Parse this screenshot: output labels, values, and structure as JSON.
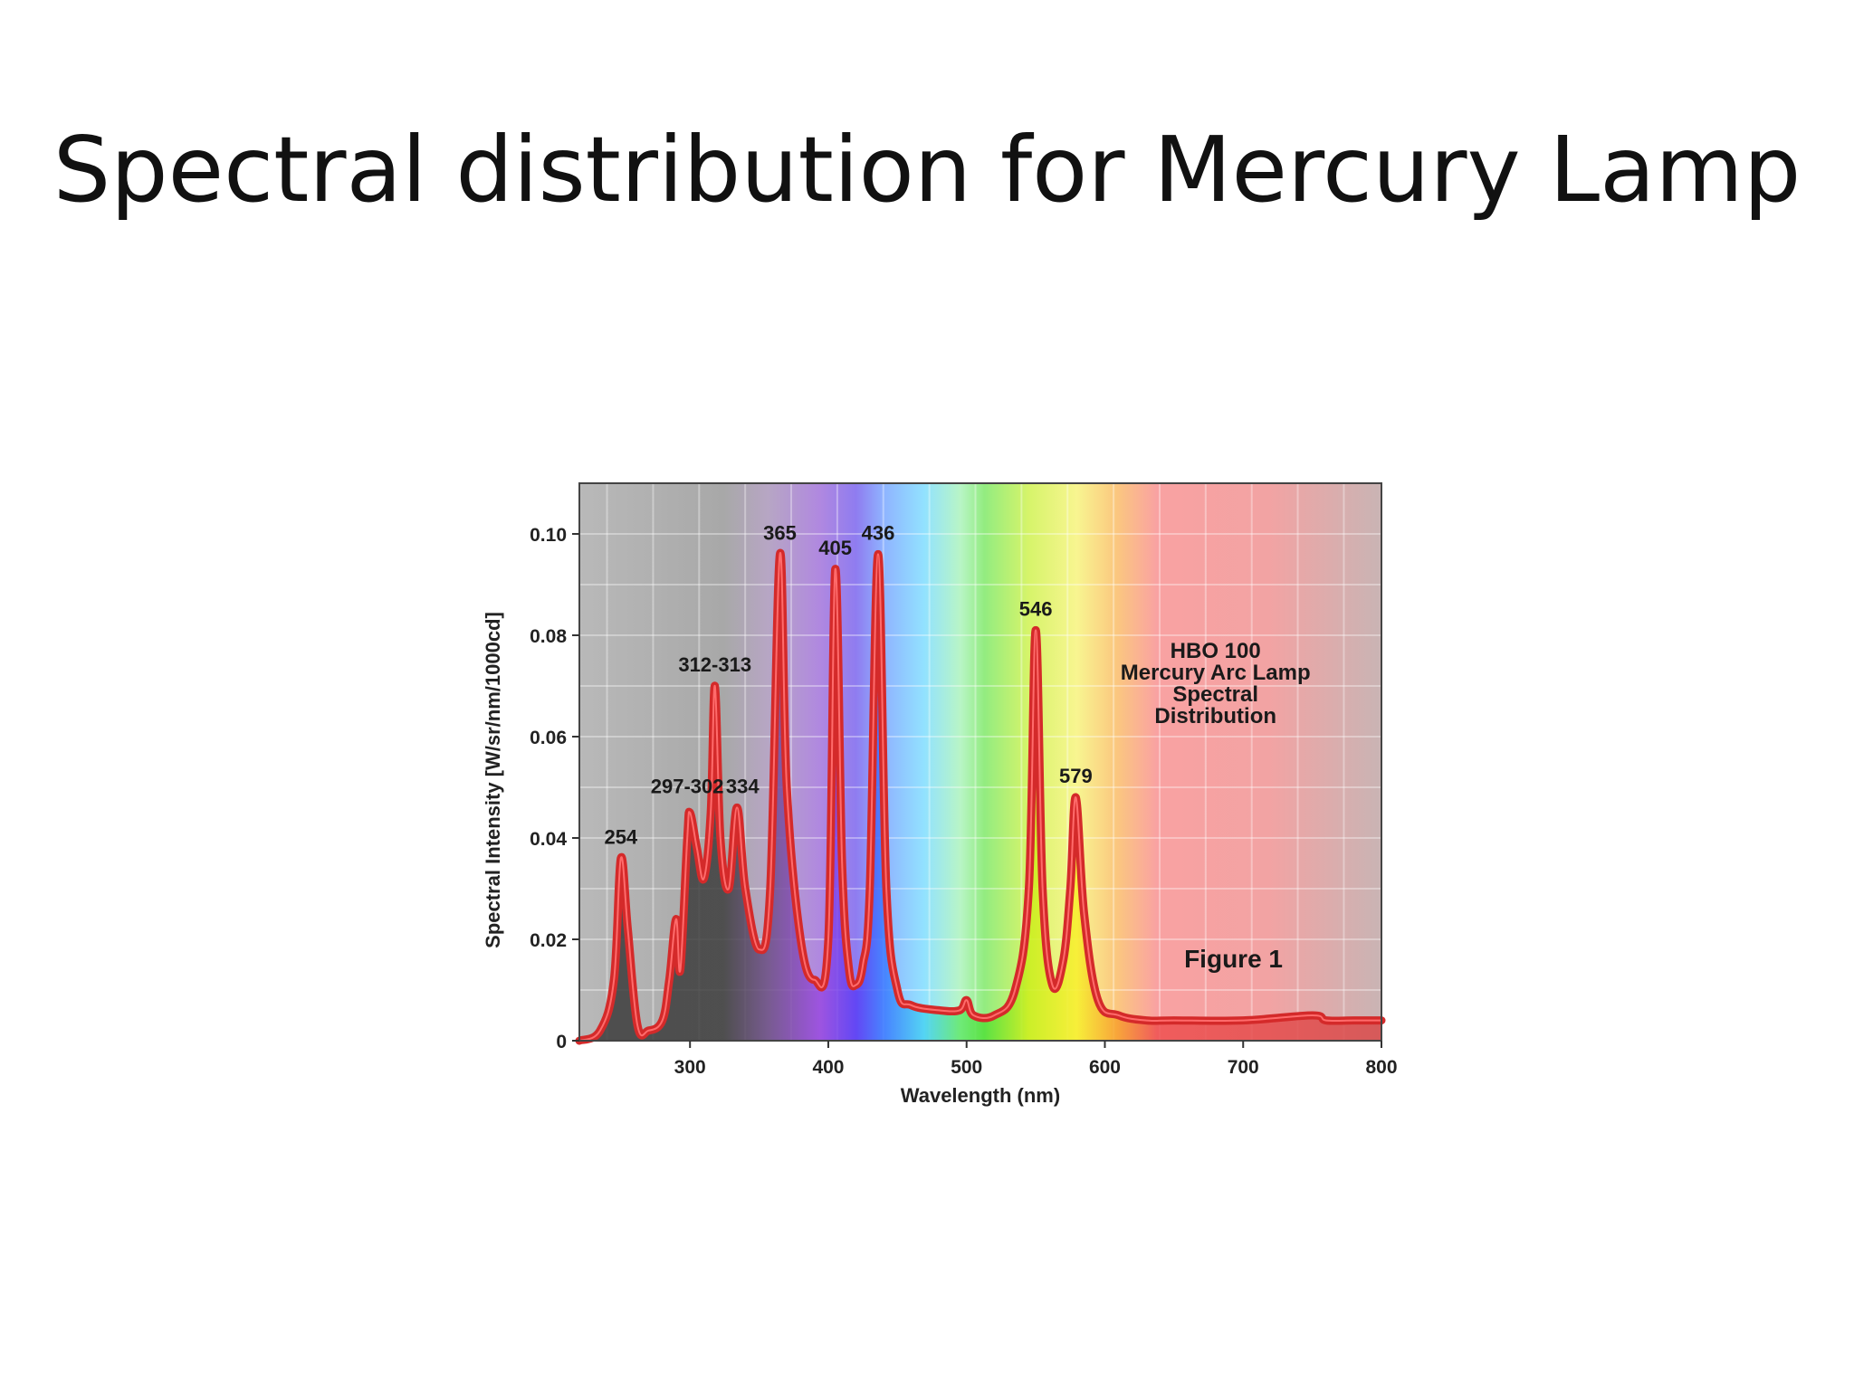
{
  "slide": {
    "title": "Spectral distribution for Mercury Lamp"
  },
  "chart_data": {
    "type": "line",
    "title": "",
    "xlabel": "Wavelength (nm)",
    "ylabel": "Spectral Intensity [W/sr/nm/1000cd]",
    "xlim": [
      220,
      800
    ],
    "ylim": [
      0,
      0.11
    ],
    "x_ticks": [
      300,
      400,
      500,
      600,
      700,
      800
    ],
    "y_ticks": [
      0,
      0.02,
      0.04,
      0.06,
      0.08,
      0.1
    ],
    "y_tick_labels": [
      "0",
      "0.02",
      "0.04",
      "0.06",
      "0.08",
      "0.10"
    ],
    "grid": true,
    "line_color": "#d42a2a",
    "series": [
      {
        "x": [
          220,
          235,
          245,
          250,
          255,
          262,
          270,
          280,
          285,
          290,
          293,
          298,
          300,
          305,
          310,
          315,
          318,
          322,
          328,
          334,
          340,
          350,
          358,
          365,
          370,
          380,
          390,
          400,
          405,
          410,
          415,
          420,
          425,
          430,
          436,
          442,
          450,
          460,
          480,
          495,
          500,
          505,
          520,
          535,
          545,
          550,
          555,
          562,
          570,
          575,
          579,
          585,
          595,
          610,
          630,
          650,
          700,
          750,
          760,
          780,
          800
        ],
        "y": [
          0.0,
          0.002,
          0.012,
          0.036,
          0.022,
          0.003,
          0.002,
          0.004,
          0.012,
          0.024,
          0.014,
          0.04,
          0.045,
          0.038,
          0.032,
          0.045,
          0.07,
          0.04,
          0.03,
          0.046,
          0.03,
          0.018,
          0.03,
          0.096,
          0.05,
          0.02,
          0.012,
          0.02,
          0.093,
          0.035,
          0.014,
          0.011,
          0.015,
          0.03,
          0.096,
          0.03,
          0.01,
          0.007,
          0.006,
          0.006,
          0.008,
          0.005,
          0.005,
          0.01,
          0.03,
          0.081,
          0.03,
          0.011,
          0.016,
          0.03,
          0.048,
          0.025,
          0.008,
          0.005,
          0.004,
          0.004,
          0.004,
          0.005,
          0.004,
          0.004,
          0.004
        ]
      }
    ],
    "peak_labels": [
      {
        "text": "254",
        "x": 250,
        "y": 0.036
      },
      {
        "text": "297-302",
        "x": 298,
        "y": 0.046
      },
      {
        "text": "312-313",
        "x": 318,
        "y": 0.07
      },
      {
        "text": "334",
        "x": 338,
        "y": 0.046
      },
      {
        "text": "365",
        "x": 365,
        "y": 0.096
      },
      {
        "text": "405",
        "x": 405,
        "y": 0.093
      },
      {
        "text": "436",
        "x": 436,
        "y": 0.096
      },
      {
        "text": "546",
        "x": 550,
        "y": 0.081
      },
      {
        "text": "579",
        "x": 579,
        "y": 0.048
      }
    ],
    "annotation_lines": [
      "HBO 100",
      "Mercury Arc Lamp",
      "Spectral",
      "Distribution"
    ],
    "figure_label": "Figure 1"
  }
}
